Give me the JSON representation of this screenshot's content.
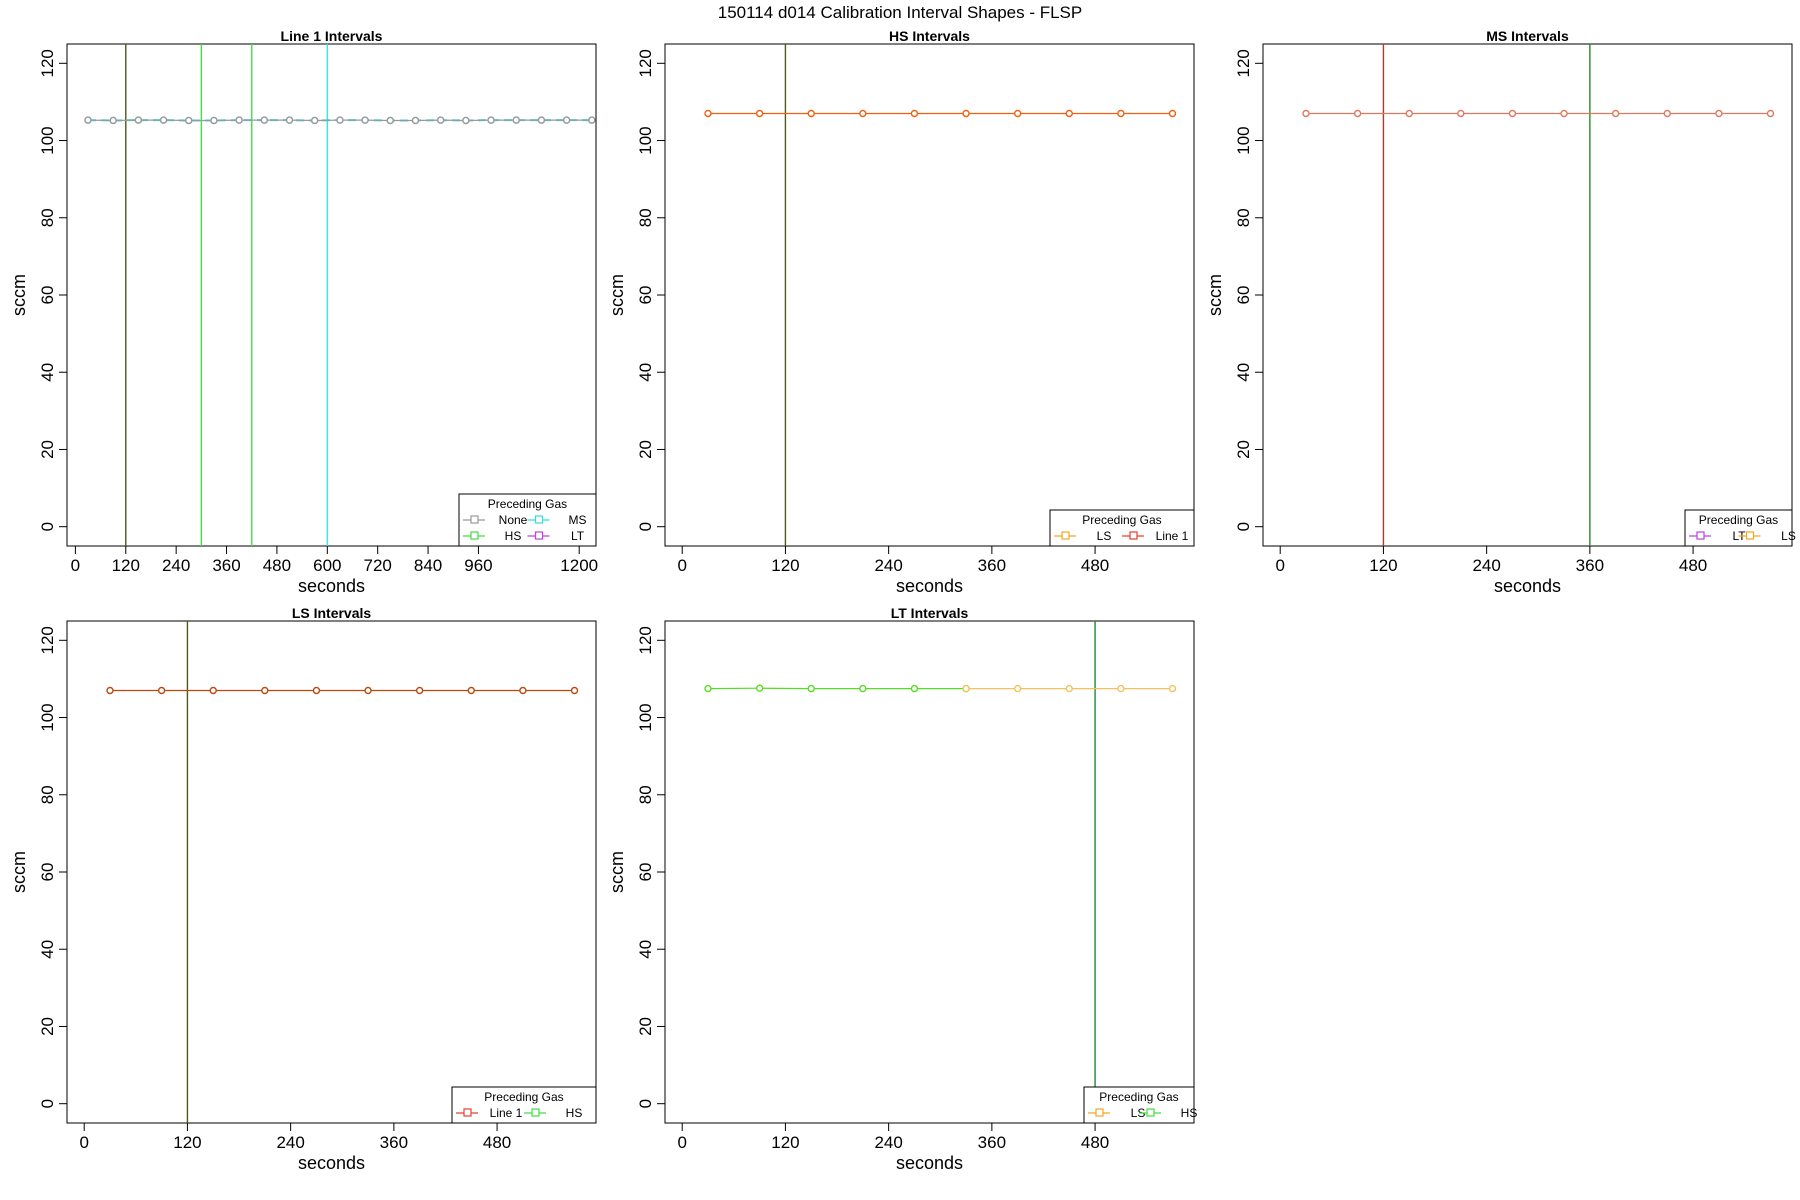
{
  "figure": {
    "title": "150114   d014   Calibration Interval Shapes - FLSP"
  },
  "colors": {
    "None": "#999999",
    "HS": "#44dd44",
    "MS": "#33dddd",
    "LT": "#bb44dd",
    "LS": "#f5a623",
    "Line 1": "#e8402f",
    "Line1_vline": "#4a5a1a",
    "HS_vline": "#44dd44",
    "MS_vline": "#33e8e8",
    "HS_line": "#f06010",
    "MS_line": "#e07860",
    "MS_red_vline": "#b03a2e",
    "MS_green_vline": "#2a8a2a",
    "LS_line": "#b84a10",
    "LS_vline": "#4a5a1a",
    "LT_green": "#55dd22",
    "LT_orange": "#f5c060",
    "LT_vline": "#1a8a3a"
  },
  "chart_data": [
    {
      "type": "line",
      "title": "Line 1 Intervals",
      "xlabel": "seconds",
      "ylabel": "sccm",
      "xlim": [
        -20,
        1240
      ],
      "ylim": [
        -5,
        125
      ],
      "xticks": [
        0,
        120,
        240,
        360,
        480,
        600,
        720,
        840,
        960,
        1200
      ],
      "yticks": [
        0,
        20,
        40,
        60,
        80,
        100,
        120
      ],
      "vlines": [
        {
          "x": 120,
          "color": "Line1_vline"
        },
        {
          "x": 300,
          "color": "HS_vline"
        },
        {
          "x": 420,
          "color": "HS_vline"
        },
        {
          "x": 600,
          "color": "MS_vline"
        }
      ],
      "series": [
        {
          "color": "MS",
          "dashed": true,
          "x": [
            30,
            90,
            150,
            210,
            270,
            330,
            390,
            450,
            510,
            570,
            630,
            690,
            750,
            810,
            870,
            930,
            990,
            1050,
            1110,
            1170,
            1230
          ],
          "y": [
            105.3,
            105.2,
            105.3,
            105.3,
            105.2,
            105.2,
            105.3,
            105.3,
            105.3,
            105.2,
            105.3,
            105.3,
            105.2,
            105.2,
            105.3,
            105.2,
            105.3,
            105.3,
            105.3,
            105.3,
            105.3
          ]
        },
        {
          "color": "None",
          "x": [
            30,
            90,
            150,
            210,
            270,
            330,
            390,
            450,
            510,
            570,
            630,
            690,
            750,
            810,
            870,
            930,
            990,
            1050,
            1110,
            1170,
            1230
          ],
          "y": [
            105.3,
            105.2,
            105.3,
            105.3,
            105.2,
            105.2,
            105.3,
            105.3,
            105.3,
            105.2,
            105.3,
            105.3,
            105.2,
            105.2,
            105.3,
            105.2,
            105.3,
            105.3,
            105.3,
            105.3,
            105.3
          ]
        }
      ],
      "legend": {
        "title": "Preceding Gas",
        "position": "bottom-right",
        "columns": 2,
        "entries": [
          {
            "label": "None",
            "color": "None"
          },
          {
            "label": "MS",
            "color": "MS"
          },
          {
            "label": "HS",
            "color": "HS"
          },
          {
            "label": "LT",
            "color": "LT"
          }
        ]
      }
    },
    {
      "type": "line",
      "title": "HS Intervals",
      "xlabel": "seconds",
      "ylabel": "sccm",
      "xlim": [
        -20,
        595
      ],
      "ylim": [
        -5,
        125
      ],
      "xticks": [
        0,
        120,
        240,
        360,
        480
      ],
      "yticks": [
        0,
        20,
        40,
        60,
        80,
        100,
        120
      ],
      "vlines": [
        {
          "x": 120,
          "color": "Line1_vline"
        }
      ],
      "series": [
        {
          "color": "HS_line",
          "x": [
            30,
            90,
            150,
            210,
            270,
            330,
            390,
            450,
            510,
            570
          ],
          "y": [
            107,
            107,
            107,
            107,
            107,
            107,
            107,
            107,
            107,
            107
          ]
        }
      ],
      "legend": {
        "title": "Preceding Gas",
        "position": "bottom-right",
        "columns": 2,
        "entries": [
          {
            "label": "LS",
            "color": "LS"
          },
          {
            "label": "Line 1",
            "color": "Line 1"
          }
        ]
      }
    },
    {
      "type": "line",
      "title": "MS Intervals",
      "xlabel": "seconds",
      "ylabel": "sccm",
      "xlim": [
        -20,
        595
      ],
      "ylim": [
        -5,
        125
      ],
      "xticks": [
        0,
        120,
        240,
        360,
        480
      ],
      "yticks": [
        0,
        20,
        40,
        60,
        80,
        100,
        120
      ],
      "vlines": [
        {
          "x": 120,
          "color": "MS_red_vline"
        },
        {
          "x": 360,
          "color": "MS_green_vline"
        }
      ],
      "series": [
        {
          "color": "MS_line",
          "x": [
            30,
            90,
            150,
            210,
            270,
            330,
            390,
            450,
            510,
            570
          ],
          "y": [
            107,
            107,
            107,
            107,
            107,
            107,
            107,
            107,
            107,
            107
          ]
        }
      ],
      "legend": {
        "title": "Preceding Gas",
        "position": "bottom-right",
        "columns": 2,
        "entries": [
          {
            "label": "LT",
            "color": "LT"
          },
          {
            "label": "LS",
            "color": "LS"
          }
        ]
      }
    },
    {
      "type": "line",
      "title": "LS Intervals",
      "xlabel": "seconds",
      "ylabel": "sccm",
      "xlim": [
        -20,
        595
      ],
      "ylim": [
        -5,
        125
      ],
      "xticks": [
        0,
        120,
        240,
        360,
        480
      ],
      "yticks": [
        0,
        20,
        40,
        60,
        80,
        100,
        120
      ],
      "vlines": [
        {
          "x": 120,
          "color": "LS_vline"
        }
      ],
      "series": [
        {
          "color": "LS_line",
          "x": [
            30,
            90,
            150,
            210,
            270,
            330,
            390,
            450,
            510,
            570
          ],
          "y": [
            107,
            107,
            107,
            107,
            107,
            107,
            107,
            107,
            107,
            107
          ]
        }
      ],
      "legend": {
        "title": "Preceding Gas",
        "position": "bottom-right",
        "columns": 2,
        "entries": [
          {
            "label": "Line 1",
            "color": "Line 1"
          },
          {
            "label": "HS",
            "color": "HS"
          }
        ]
      }
    },
    {
      "type": "line",
      "title": "LT Intervals",
      "xlabel": "seconds",
      "ylabel": "sccm",
      "xlim": [
        -20,
        595
      ],
      "ylim": [
        -5,
        125
      ],
      "xticks": [
        0,
        120,
        240,
        360,
        480
      ],
      "yticks": [
        0,
        20,
        40,
        60,
        80,
        100,
        120
      ],
      "vlines": [
        {
          "x": 480,
          "color": "LT_vline"
        }
      ],
      "series": [
        {
          "color": "LT_green",
          "x": [
            30,
            90,
            150,
            210,
            270,
            330
          ],
          "y": [
            107.5,
            107.6,
            107.5,
            107.5,
            107.5,
            107.5
          ]
        },
        {
          "color": "LT_orange",
          "x": [
            330,
            390,
            450,
            510,
            570
          ],
          "y": [
            107.5,
            107.5,
            107.5,
            107.5,
            107.5
          ]
        }
      ],
      "legend": {
        "title": "Preceding Gas",
        "position": "bottom-right",
        "columns": 2,
        "entries": [
          {
            "label": "LS",
            "color": "LS"
          },
          {
            "label": "HS",
            "color": "HS"
          }
        ]
      }
    }
  ]
}
